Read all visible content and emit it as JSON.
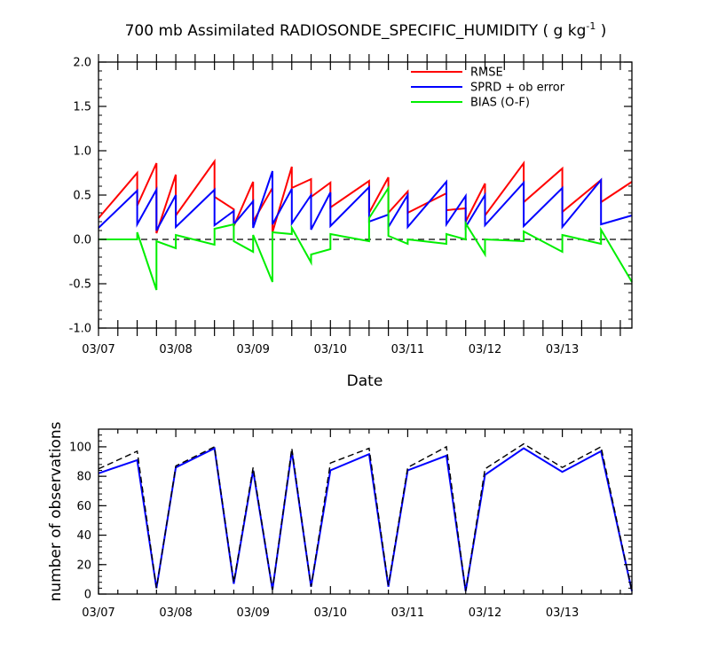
{
  "chart_data": [
    {
      "type": "line",
      "title_main": "700 mb Assimilated RADIOSONDE_SPECIFIC_HUMIDITY ( g kg",
      "title_superscript": "-1",
      "title_end": " )",
      "xlabel": "Date",
      "ylabel": "",
      "ylim": [
        -1.0,
        2.0
      ],
      "xlim": [
        0,
        6.9
      ],
      "yticks": [
        -1.0,
        -0.5,
        0.0,
        0.5,
        1.0,
        1.5,
        2.0
      ],
      "ytick_labels": [
        "-1.0",
        "-0.5",
        "0.0",
        "0.5",
        "1.0",
        "1.5",
        "2.0"
      ],
      "xtick_positions": [
        0,
        1,
        2,
        3,
        4,
        5,
        6
      ],
      "xtick_labels": [
        "03/07",
        "03/08",
        "03/09",
        "03/10",
        "03/11",
        "03/12",
        "03/13"
      ],
      "zero_line": 0.0,
      "legend": [
        "RMSE",
        "SPRD + ob error",
        "BIAS (O-F)"
      ],
      "colors": {
        "rmse": "#ff0000",
        "sprd": "#0000ff",
        "bias": "#00ee00",
        "zero": "#000000"
      },
      "series": [
        {
          "name": "RMSE",
          "key": "rmse",
          "x": [
            0.0,
            0.5,
            0.5,
            0.75,
            0.75,
            1.0,
            1.0,
            1.5,
            1.5,
            1.75,
            1.75,
            2.0,
            2.0,
            2.25,
            2.25,
            2.5,
            2.5,
            2.75,
            2.75,
            3.0,
            3.0,
            3.5,
            3.5,
            3.75,
            3.75,
            4.0,
            4.0,
            4.5,
            4.5,
            4.75,
            4.75,
            5.0,
            5.0,
            5.5,
            5.5,
            6.0,
            6.0,
            6.5,
            6.5,
            6.9
          ],
          "values": [
            0.24,
            0.75,
            0.38,
            0.86,
            0.07,
            0.73,
            0.27,
            0.88,
            0.48,
            0.34,
            0.15,
            0.65,
            0.2,
            0.58,
            0.08,
            0.82,
            0.58,
            0.68,
            0.48,
            0.64,
            0.36,
            0.66,
            0.3,
            0.7,
            0.3,
            0.54,
            0.3,
            0.52,
            0.33,
            0.35,
            0.2,
            0.63,
            0.27,
            0.86,
            0.42,
            0.8,
            0.31,
            0.67,
            0.42,
            0.65
          ]
        },
        {
          "name": "SPRD + ob error",
          "key": "sprd",
          "x": [
            0.0,
            0.5,
            0.5,
            0.75,
            0.75,
            1.0,
            1.0,
            1.5,
            1.5,
            1.75,
            1.75,
            2.0,
            2.0,
            2.25,
            2.25,
            2.5,
            2.5,
            2.75,
            2.75,
            3.0,
            3.0,
            3.5,
            3.5,
            3.75,
            3.75,
            4.0,
            4.0,
            4.5,
            4.5,
            4.75,
            4.75,
            5.0,
            5.0,
            5.5,
            5.5,
            6.0,
            6.0,
            6.5,
            6.5,
            6.9
          ],
          "values": [
            0.13,
            0.55,
            0.17,
            0.56,
            0.1,
            0.5,
            0.14,
            0.56,
            0.16,
            0.32,
            0.17,
            0.43,
            0.13,
            0.77,
            0.17,
            0.57,
            0.18,
            0.5,
            0.11,
            0.53,
            0.15,
            0.59,
            0.2,
            0.28,
            0.14,
            0.5,
            0.14,
            0.65,
            0.17,
            0.49,
            0.14,
            0.5,
            0.16,
            0.64,
            0.15,
            0.58,
            0.14,
            0.67,
            0.17,
            0.27
          ]
        },
        {
          "name": "BIAS (O-F)",
          "key": "bias",
          "x": [
            0.0,
            0.5,
            0.5,
            0.75,
            0.75,
            1.0,
            1.0,
            1.5,
            1.5,
            1.75,
            1.75,
            2.0,
            2.0,
            2.25,
            2.25,
            2.5,
            2.5,
            2.75,
            2.75,
            3.0,
            3.0,
            3.5,
            3.5,
            3.75,
            3.75,
            4.0,
            4.0,
            4.5,
            4.5,
            4.75,
            4.75,
            5.0,
            5.0,
            5.5,
            5.5,
            6.0,
            6.0,
            6.5,
            6.5,
            6.9
          ],
          "values": [
            0.0,
            0.0,
            0.08,
            -0.57,
            -0.02,
            -0.1,
            0.05,
            -0.06,
            0.12,
            0.17,
            -0.02,
            -0.14,
            0.05,
            -0.48,
            0.08,
            0.06,
            0.13,
            -0.26,
            -0.17,
            -0.11,
            0.06,
            -0.02,
            0.24,
            0.58,
            0.04,
            -0.05,
            0.0,
            -0.05,
            0.06,
            0.0,
            0.18,
            -0.17,
            0.0,
            -0.02,
            0.09,
            -0.14,
            0.05,
            -0.05,
            0.11,
            -0.48
          ]
        }
      ]
    },
    {
      "type": "line",
      "title": "",
      "xlabel": "",
      "ylabel": "number of observations",
      "ylim": [
        0,
        112
      ],
      "xlim": [
        0,
        6.9
      ],
      "yticks": [
        0,
        20,
        40,
        60,
        80,
        100
      ],
      "ytick_labels": [
        "0",
        "20",
        "40",
        "60",
        "80",
        "100"
      ],
      "xtick_positions": [
        0,
        1,
        2,
        3,
        4,
        5,
        6
      ],
      "xtick_labels": [
        "03/07",
        "03/08",
        "03/09",
        "03/10",
        "03/11",
        "03/12",
        "03/13"
      ],
      "x": [
        0.0,
        0.5,
        0.75,
        1.0,
        1.5,
        1.75,
        2.0,
        2.25,
        2.5,
        2.75,
        3.0,
        3.5,
        3.75,
        4.0,
        4.5,
        4.75,
        5.0,
        5.5,
        6.0,
        6.5,
        6.9
      ],
      "series": [
        {
          "name": "assimilated",
          "style": "solid",
          "color": "#0000ff",
          "values": [
            82,
            91,
            4,
            86,
            99,
            7,
            84,
            3,
            97,
            5,
            84,
            95,
            5,
            84,
            94,
            2,
            81,
            99,
            83,
            97,
            2
          ]
        },
        {
          "name": "total",
          "style": "dashed",
          "color": "#000000",
          "values": [
            85,
            97,
            4,
            87,
            100,
            8,
            86,
            3,
            99,
            5,
            89,
            99,
            6,
            86,
            100,
            2,
            85,
            102,
            86,
            100,
            2
          ]
        }
      ]
    }
  ]
}
